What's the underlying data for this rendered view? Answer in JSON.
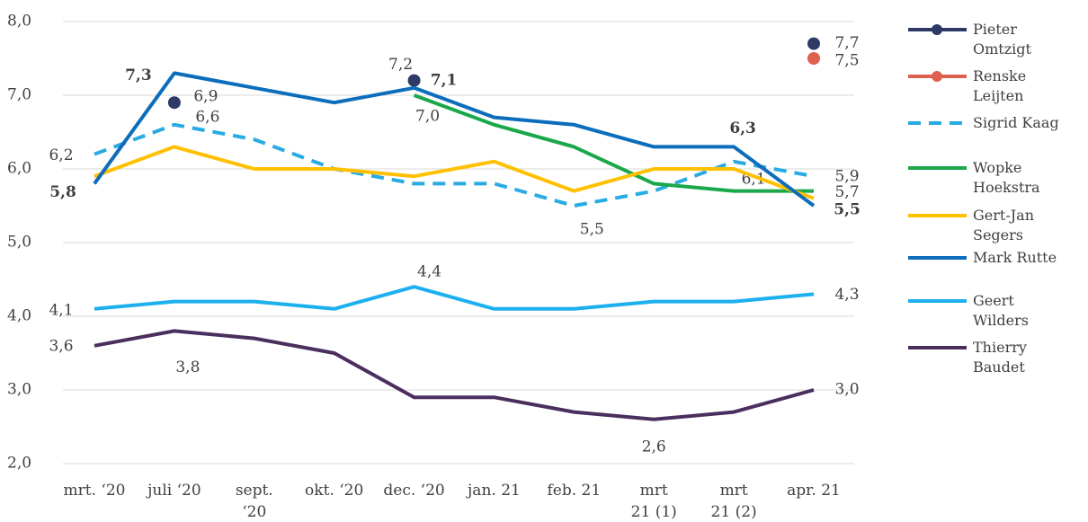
{
  "chart_data": {
    "type": "line",
    "categories": [
      "mrt. ‘20",
      "juli ‘20",
      "sept. ‘20",
      "okt. ‘20",
      "dec. ‘20",
      "jan. 21",
      "feb. 21",
      "mrt 21 (1)",
      "mrt 21 (2)",
      "apr. 21"
    ],
    "ylim": [
      2,
      8
    ],
    "yticks": [
      {
        "value": 2,
        "label": "2,0"
      },
      {
        "value": 3,
        "label": "3,0"
      },
      {
        "value": 4,
        "label": "4,0"
      },
      {
        "value": 5,
        "label": "5,0"
      },
      {
        "value": 6,
        "label": "6,0"
      },
      {
        "value": 7,
        "label": "7,0"
      },
      {
        "value": 8,
        "label": "8,0"
      }
    ],
    "grid": true,
    "legend": "right",
    "series": [
      {
        "name": "Pieter Omtzigt",
        "color": "#2e3a66",
        "marker": true,
        "values": [
          null,
          6.9,
          null,
          null,
          7.2,
          null,
          null,
          null,
          null,
          7.7
        ],
        "value_labels": [
          null,
          "6,9",
          null,
          null,
          "7,2",
          null,
          null,
          null,
          null,
          "7,7"
        ]
      },
      {
        "name": "Renske Leijten",
        "color": "#e06050",
        "marker": true,
        "values": [
          null,
          null,
          null,
          null,
          null,
          null,
          null,
          null,
          null,
          7.5
        ],
        "value_labels": [
          null,
          null,
          null,
          null,
          null,
          null,
          null,
          null,
          null,
          "7,5"
        ]
      },
      {
        "name": "Sigrid Kaag",
        "color": "#29abe2",
        "dashed": true,
        "values": [
          6.2,
          6.6,
          6.4,
          6.0,
          5.8,
          5.8,
          5.5,
          5.7,
          6.1,
          5.9
        ],
        "value_labels": [
          "6,2",
          "6,6",
          null,
          null,
          null,
          null,
          "5,5",
          null,
          "6,1",
          "5,9"
        ]
      },
      {
        "name": "Wopke Hoekstra",
        "color": "#1aa84b",
        "values": [
          null,
          null,
          null,
          null,
          7.0,
          6.6,
          6.3,
          5.8,
          5.7,
          5.7
        ],
        "value_labels": [
          null,
          null,
          null,
          null,
          "7,0",
          null,
          null,
          null,
          null,
          "5,7"
        ]
      },
      {
        "name": "Gert-Jan Segers",
        "color": "#ffc000",
        "values": [
          5.9,
          6.3,
          6.0,
          6.0,
          5.9,
          6.1,
          5.7,
          6.0,
          6.0,
          5.6
        ]
      },
      {
        "name": "Mark Rutte",
        "color": "#0b6dbb",
        "values": [
          5.8,
          7.3,
          7.1,
          6.9,
          7.1,
          6.7,
          6.6,
          6.3,
          6.3,
          5.5
        ],
        "value_labels": [
          "5,8",
          "7,3",
          null,
          null,
          "7,1",
          null,
          null,
          null,
          "6,3",
          "5,5"
        ]
      },
      {
        "name": "Geert Wilders",
        "color": "#1cb0ef",
        "values": [
          4.1,
          4.2,
          4.2,
          4.1,
          4.4,
          4.1,
          4.1,
          4.2,
          4.2,
          4.3
        ],
        "value_labels": [
          "4,1",
          null,
          null,
          null,
          "4,4",
          null,
          null,
          null,
          null,
          "4,3"
        ]
      },
      {
        "name": "Thierry Baudet",
        "color": "#4a2f5e",
        "values": [
          3.6,
          3.8,
          3.7,
          3.5,
          2.9,
          2.9,
          2.7,
          2.6,
          2.7,
          3.0
        ],
        "value_labels": [
          "3,6",
          "3,8",
          null,
          null,
          null,
          null,
          null,
          "2,6",
          null,
          "3,0"
        ]
      }
    ]
  }
}
